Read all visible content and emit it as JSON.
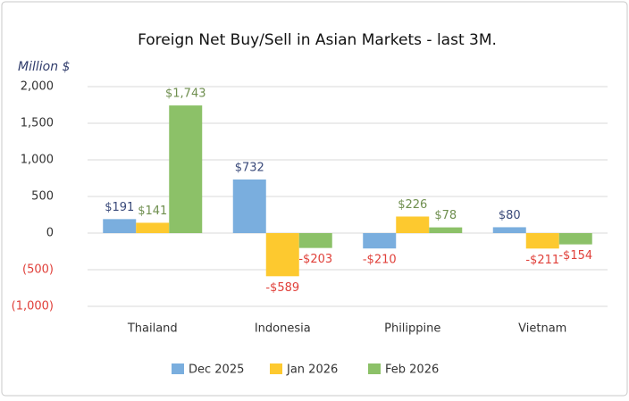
{
  "chart_data": {
    "type": "bar",
    "title": "Foreign Net Buy/Sell in Asian Markets - last 3M.",
    "y_label": "Million $",
    "categories": [
      "Thailand",
      "Indonesia",
      "Philippine",
      "Vietnam"
    ],
    "series": [
      {
        "name": "Dec 2025",
        "color": "#7aaede",
        "values": [
          191,
          732,
          -210,
          80
        ],
        "value_labels": [
          "$191",
          "$732",
          "-$210",
          "$80"
        ]
      },
      {
        "name": "Jan 2026",
        "color": "#fdc92f",
        "values": [
          141,
          -589,
          226,
          -211
        ],
        "value_labels": [
          "$141",
          "-$589",
          "$226",
          "-$211"
        ]
      },
      {
        "name": "Feb 2026",
        "color": "#8cc168",
        "values": [
          1743,
          -203,
          78,
          -154
        ],
        "value_labels": [
          "$1,743",
          "-$203",
          "$78",
          "-$154"
        ]
      }
    ],
    "ylim": [
      -1000,
      2000
    ],
    "yticks": [
      {
        "value": -1000,
        "label": "(1,000)"
      },
      {
        "value": -500,
        "label": "(500)"
      },
      0,
      500,
      {
        "value": 1000,
        "label": "1,000"
      },
      {
        "value": 1500,
        "label": "1,500"
      },
      {
        "value": 2000,
        "label": "2,000"
      }
    ],
    "grid": true,
    "legend": "bottom"
  }
}
